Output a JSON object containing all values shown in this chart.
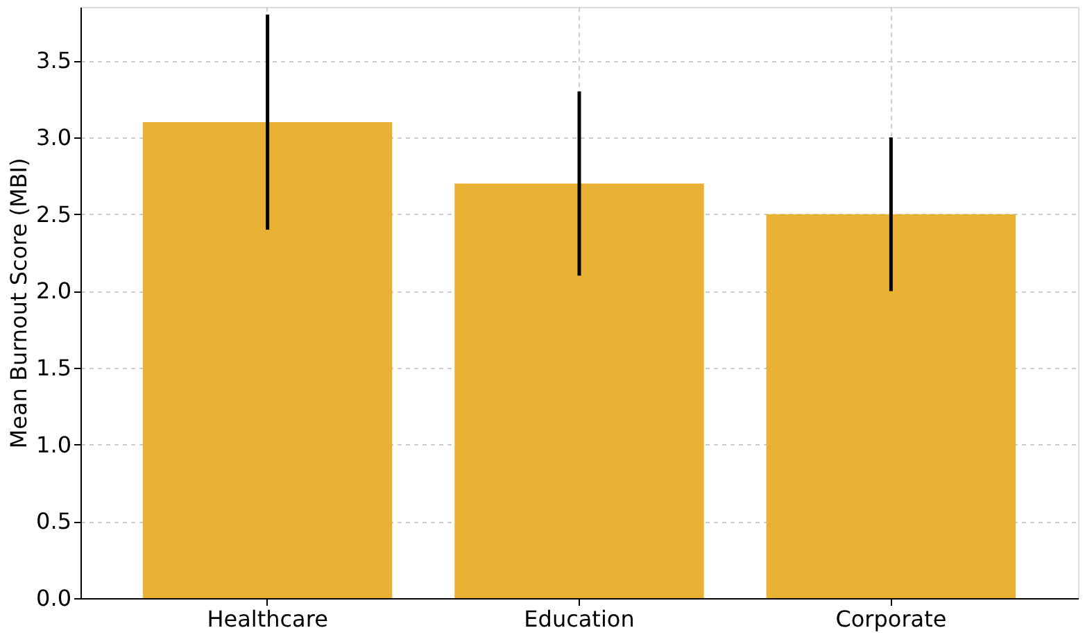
{
  "chart_data": {
    "type": "bar",
    "ylabel": "Mean Burnout Score (MBI)",
    "categories": [
      "Healthcare",
      "Education",
      "Corporate"
    ],
    "values": [
      3.1,
      2.7,
      2.5
    ],
    "errors": [
      0.7,
      0.6,
      0.5
    ],
    "color": "#e9b133",
    "ylim": [
      0,
      3.85
    ],
    "yticks": [
      {
        "value": 0,
        "label": "0.0"
      },
      0.5,
      {
        "value": 1,
        "label": "1.0"
      },
      1.5,
      {
        "value": 2,
        "label": "2.0"
      },
      2.5,
      {
        "value": 3,
        "label": "3.0"
      },
      3.5
    ],
    "grid": true
  }
}
